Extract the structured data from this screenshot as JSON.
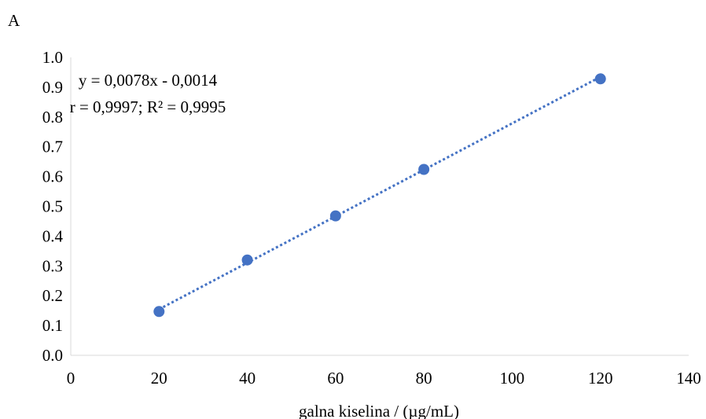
{
  "panel_label": "A",
  "chart_data": {
    "type": "scatter",
    "xlabel": "galna kiselina / (µg/mL)",
    "ylabel": "",
    "xlim": [
      0,
      140
    ],
    "ylim": [
      0.0,
      1.0
    ],
    "x_ticks": [
      0,
      20,
      40,
      60,
      80,
      100,
      120,
      140
    ],
    "x_tick_labels": [
      "0",
      "20",
      "40",
      "60",
      "80",
      "100",
      "120",
      "140"
    ],
    "y_ticks": [
      0.0,
      0.1,
      0.2,
      0.3,
      0.4,
      0.5,
      0.6,
      0.7,
      0.8,
      0.9,
      1.0
    ],
    "y_tick_labels": [
      "0.0",
      "0.1",
      "0.2",
      "0.3",
      "0.4",
      "0.5",
      "0.6",
      "0.7",
      "0.8",
      "0.9",
      "1.0"
    ],
    "grid": false,
    "series": [
      {
        "x": [
          20,
          40,
          60,
          80,
          120
        ],
        "y": [
          0.147,
          0.32,
          0.468,
          0.624,
          0.928
        ],
        "color": "#4472c4"
      }
    ],
    "trendline": {
      "slope": 0.0078,
      "intercept": -0.0014,
      "x_range": [
        20,
        120
      ],
      "style": "dotted",
      "color": "#4472c4"
    },
    "annotations": [
      "y = 0,0078x - 0,0014",
      "r = 0,9997; R² = 0,9995"
    ]
  }
}
